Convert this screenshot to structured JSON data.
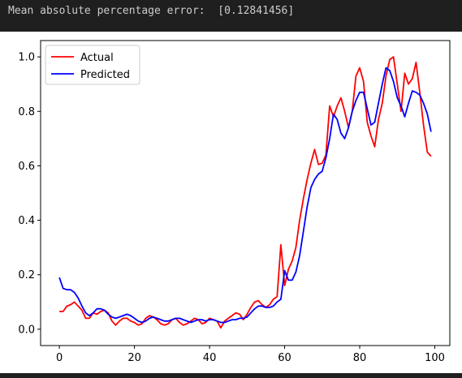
{
  "output": {
    "mape_text": "Mean absolute percentage error:  [0.12841456]"
  },
  "chart_data": {
    "type": "line",
    "title": "",
    "xlabel": "",
    "ylabel": "",
    "xlim": [
      -5,
      104
    ],
    "ylim": [
      -0.06,
      1.06
    ],
    "xticks": [
      0,
      20,
      40,
      60,
      80,
      100
    ],
    "yticks": [
      0.0,
      0.2,
      0.4,
      0.6,
      0.8,
      1.0
    ],
    "ytick_labels": [
      "0.0",
      "0.2",
      "0.4",
      "0.6",
      "0.8",
      "1.0"
    ],
    "grid": false,
    "legend_position": "top-left",
    "x": [
      0,
      1,
      2,
      3,
      4,
      5,
      6,
      7,
      8,
      9,
      10,
      11,
      12,
      13,
      14,
      15,
      16,
      17,
      18,
      19,
      20,
      21,
      22,
      23,
      24,
      25,
      26,
      27,
      28,
      29,
      30,
      31,
      32,
      33,
      34,
      35,
      36,
      37,
      38,
      39,
      40,
      41,
      42,
      43,
      44,
      45,
      46,
      47,
      48,
      49,
      50,
      51,
      52,
      53,
      54,
      55,
      56,
      57,
      58,
      59,
      60,
      61,
      62,
      63,
      64,
      65,
      66,
      67,
      68,
      69,
      70,
      71,
      72,
      73,
      74,
      75,
      76,
      77,
      78,
      79,
      80,
      81,
      82,
      83,
      84,
      85,
      86,
      87,
      88,
      89,
      90,
      91,
      92,
      93,
      94,
      95,
      96,
      97,
      98,
      99
    ],
    "series": [
      {
        "name": "Actual",
        "color": "#ff0000",
        "values": [
          0.065,
          0.065,
          0.085,
          0.09,
          0.1,
          0.085,
          0.07,
          0.04,
          0.04,
          0.06,
          0.055,
          0.065,
          0.07,
          0.06,
          0.03,
          0.015,
          0.03,
          0.04,
          0.04,
          0.03,
          0.025,
          0.015,
          0.02,
          0.04,
          0.05,
          0.045,
          0.035,
          0.02,
          0.015,
          0.02,
          0.035,
          0.04,
          0.025,
          0.015,
          0.02,
          0.03,
          0.04,
          0.035,
          0.02,
          0.025,
          0.04,
          0.035,
          0.03,
          0.005,
          0.03,
          0.04,
          0.05,
          0.06,
          0.055,
          0.035,
          0.055,
          0.08,
          0.1,
          0.105,
          0.09,
          0.08,
          0.09,
          0.11,
          0.12,
          0.31,
          0.16,
          0.22,
          0.25,
          0.3,
          0.4,
          0.48,
          0.55,
          0.61,
          0.66,
          0.605,
          0.61,
          0.64,
          0.82,
          0.78,
          0.82,
          0.85,
          0.8,
          0.74,
          0.8,
          0.93,
          0.96,
          0.91,
          0.76,
          0.71,
          0.67,
          0.77,
          0.83,
          0.93,
          0.99,
          1.0,
          0.9,
          0.8,
          0.94,
          0.9,
          0.92,
          0.98,
          0.87,
          0.75,
          0.65,
          0.635
        ]
      },
      {
        "name": "Predicted",
        "color": "#0000ff",
        "values": [
          0.19,
          0.15,
          0.145,
          0.145,
          0.135,
          0.115,
          0.085,
          0.06,
          0.05,
          0.06,
          0.075,
          0.075,
          0.07,
          0.055,
          0.045,
          0.04,
          0.045,
          0.05,
          0.055,
          0.05,
          0.04,
          0.03,
          0.025,
          0.03,
          0.04,
          0.045,
          0.04,
          0.035,
          0.03,
          0.03,
          0.035,
          0.04,
          0.04,
          0.035,
          0.03,
          0.025,
          0.03,
          0.035,
          0.035,
          0.03,
          0.035,
          0.035,
          0.03,
          0.025,
          0.025,
          0.03,
          0.035,
          0.035,
          0.04,
          0.04,
          0.045,
          0.06,
          0.075,
          0.085,
          0.085,
          0.08,
          0.08,
          0.085,
          0.1,
          0.11,
          0.215,
          0.18,
          0.18,
          0.21,
          0.27,
          0.36,
          0.45,
          0.52,
          0.55,
          0.57,
          0.58,
          0.63,
          0.7,
          0.79,
          0.77,
          0.72,
          0.7,
          0.74,
          0.8,
          0.84,
          0.87,
          0.87,
          0.81,
          0.75,
          0.76,
          0.83,
          0.9,
          0.96,
          0.95,
          0.91,
          0.85,
          0.82,
          0.78,
          0.83,
          0.875,
          0.87,
          0.86,
          0.83,
          0.79,
          0.725
        ]
      }
    ]
  }
}
